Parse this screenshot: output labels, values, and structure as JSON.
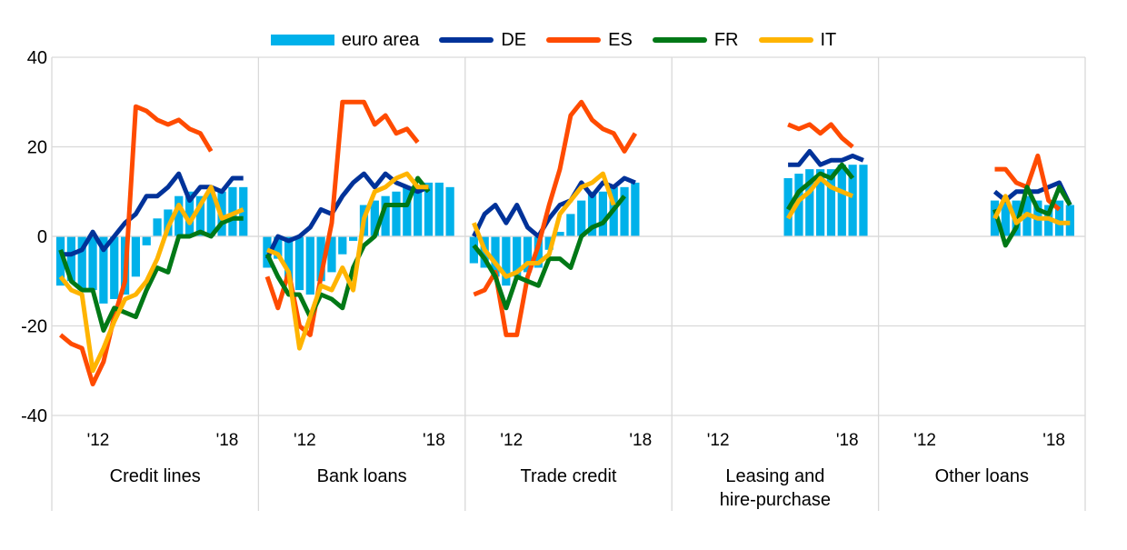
{
  "chart_data": {
    "type": "bar+line",
    "legend": [
      {
        "key": "ea",
        "name": "euro area",
        "kind": "bar",
        "color": "#00b1ea"
      },
      {
        "key": "de",
        "name": "DE",
        "kind": "line",
        "color": "#003299"
      },
      {
        "key": "es",
        "name": "ES",
        "kind": "line",
        "color": "#ff4b00"
      },
      {
        "key": "fr",
        "name": "FR",
        "kind": "line",
        "color": "#007816"
      },
      {
        "key": "it",
        "name": "IT",
        "kind": "line",
        "color": "#ffb400"
      }
    ],
    "ylim": [
      -40,
      40
    ],
    "yticks": [
      40,
      20,
      0,
      -20,
      -40
    ],
    "grid": true,
    "x_range": [
      2010.1,
      2019.2
    ],
    "xticks": [
      {
        "x": 2012,
        "label": "'12"
      },
      {
        "x": 2018,
        "label": "'18"
      }
    ],
    "panels": [
      {
        "label_lines": [
          "Credit lines"
        ],
        "start": 2010.25,
        "step": 0.5,
        "series": {
          "ea": [
            -11,
            -10,
            -12,
            -12,
            -15,
            -14,
            -13,
            -9,
            -2,
            4,
            6,
            9,
            10,
            9,
            10,
            10,
            11,
            11
          ],
          "de": [
            -4,
            -4,
            -3,
            1,
            -3,
            0,
            3,
            5,
            9,
            9,
            11,
            14,
            8,
            11,
            11,
            10,
            13,
            13
          ],
          "es": [
            -22,
            -24,
            -25,
            -33,
            -28,
            -18,
            -10,
            29,
            28,
            26,
            25,
            26,
            24,
            23,
            19,
            null,
            null,
            null
          ],
          "fr": [
            -3,
            -10,
            -12,
            -12,
            -21,
            -16,
            -17,
            -18,
            -12,
            -7,
            -8,
            0,
            0,
            1,
            0,
            3,
            4,
            4
          ],
          "it": [
            -9,
            -12,
            -13,
            -30,
            -25,
            -19,
            -14,
            -13,
            -10,
            -5,
            2,
            7,
            3,
            7,
            11,
            4,
            5,
            6
          ]
        }
      },
      {
        "label_lines": [
          "Bank loans"
        ],
        "start": 2010.25,
        "step": 0.5,
        "series": {
          "ea": [
            -7,
            -5,
            -10,
            -12,
            -13,
            -10,
            -8,
            -4,
            -1,
            7,
            8,
            9,
            10,
            11,
            10,
            12,
            12,
            11
          ],
          "de": [
            -5,
            0,
            -1,
            0,
            2,
            6,
            5,
            9,
            12,
            14,
            11,
            14,
            12,
            11,
            10,
            11,
            null,
            null
          ],
          "es": [
            -9,
            -16,
            -8,
            -20,
            -22,
            -9,
            3,
            30,
            30,
            30,
            25,
            27,
            23,
            24,
            21,
            null,
            null,
            null
          ],
          "fr": [
            -4,
            -9,
            -13,
            -13,
            -18,
            -13,
            -14,
            -16,
            -7,
            -2,
            0,
            7,
            7,
            7,
            13,
            10,
            null,
            null
          ],
          "it": [
            -3,
            -4,
            -8,
            -25,
            -18,
            -11,
            -12,
            -7,
            -12,
            4,
            10,
            11,
            13,
            14,
            11,
            11,
            null,
            null
          ]
        }
      },
      {
        "label_lines": [
          "Trade credit"
        ],
        "start": 2010.25,
        "step": 0.5,
        "series": {
          "ea": [
            -6,
            -7,
            -9,
            -11,
            -9,
            -8,
            -7,
            -3,
            1,
            5,
            8,
            10,
            10,
            11,
            11,
            12,
            null,
            null
          ],
          "de": [
            0,
            5,
            7,
            3,
            7,
            2,
            0,
            4,
            7,
            8,
            12,
            9,
            12,
            11,
            13,
            12,
            null,
            null
          ],
          "es": [
            -13,
            -12,
            -8,
            -22,
            -22,
            -9,
            -2,
            7,
            15,
            27,
            30,
            26,
            24,
            23,
            19,
            23,
            null,
            null
          ],
          "fr": [
            -2,
            -5,
            -9,
            -16,
            -9,
            -10,
            -11,
            -5,
            -5,
            -7,
            0,
            2,
            3,
            6,
            9,
            null,
            null,
            null
          ],
          "it": [
            3,
            -3,
            -6,
            -9,
            -8,
            -6,
            -6,
            -4,
            5,
            8,
            11,
            12,
            14,
            7,
            null,
            null,
            null,
            null
          ]
        }
      },
      {
        "label_lines": [
          "Leasing and",
          "hire-purchase"
        ],
        "start": 2015.25,
        "step": 0.5,
        "series": {
          "ea": [
            13,
            14,
            15,
            15,
            15,
            16,
            16,
            16
          ],
          "de": [
            16,
            16,
            19,
            16,
            17,
            17,
            18,
            17
          ],
          "es": [
            25,
            24,
            25,
            23,
            25,
            22,
            20,
            null
          ],
          "fr": [
            6,
            10,
            12,
            14,
            13,
            16,
            13,
            null
          ],
          "it": [
            4,
            8,
            10,
            13,
            11,
            10,
            9,
            null
          ]
        }
      },
      {
        "label_lines": [
          "Other loans"
        ],
        "start": 2015.25,
        "step": 0.5,
        "series": {
          "ea": [
            8,
            9,
            8,
            9,
            8,
            7,
            8,
            7
          ],
          "de": [
            10,
            8,
            10,
            10,
            10,
            11,
            12,
            7
          ],
          "es": [
            15,
            15,
            12,
            11,
            18,
            8,
            6,
            null
          ],
          "fr": [
            6,
            -2,
            2,
            11,
            6,
            5,
            11,
            7
          ],
          "it": [
            4,
            9,
            3,
            5,
            4,
            4,
            3,
            3
          ]
        }
      }
    ]
  }
}
